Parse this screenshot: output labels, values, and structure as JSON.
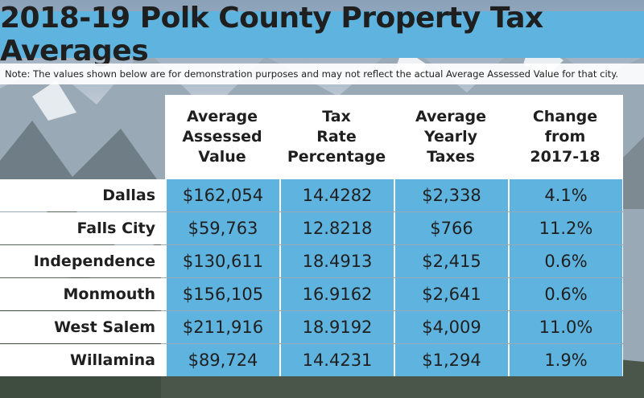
{
  "title": "2018-19 Polk County Property Tax Averages",
  "note": "Note: The values shown below are for demonstration purposes and may not reflect the actual Average Assessed Value for that city.",
  "colors": {
    "accent": "#5fb3df",
    "text": "#1f1f1f",
    "panel": "#ffffff"
  },
  "table": {
    "headers": [
      "Average\nAssessed\nValue",
      "Tax\nRate\nPercentage",
      "Average\nYearly\nTaxes",
      "Change\nfrom\n2017-18"
    ],
    "rows": [
      {
        "city": "Dallas",
        "values": [
          "$162,054",
          "14.4282",
          "$2,338",
          "4.1%"
        ]
      },
      {
        "city": "Falls City",
        "values": [
          "$59,763",
          "12.8218",
          "$766",
          "11.2%"
        ]
      },
      {
        "city": "Independence",
        "values": [
          "$130,611",
          "18.4913",
          "$2,415",
          "0.6%"
        ]
      },
      {
        "city": "Monmouth",
        "values": [
          "$156,105",
          "16.9162",
          "$2,641",
          "0.6%"
        ]
      },
      {
        "city": "West Salem",
        "values": [
          "$211,916",
          "18.9192",
          "$4,009",
          "11.0%"
        ]
      },
      {
        "city": "Willamina",
        "values": [
          "$89,724",
          "14.4231",
          "$1,294",
          "1.9%"
        ]
      }
    ]
  }
}
